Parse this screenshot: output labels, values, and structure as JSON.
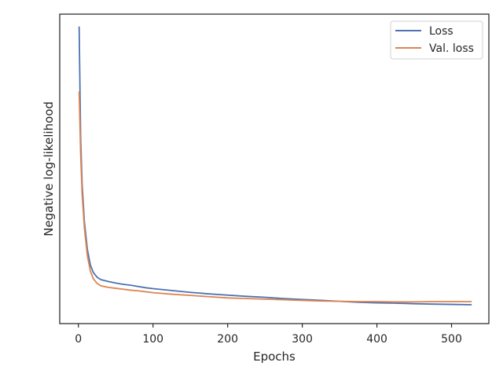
{
  "chart_data": {
    "type": "line",
    "title": "",
    "xlabel": "Epochs",
    "ylabel": "Negative log-likelihood",
    "xlim": [
      -25,
      550
    ],
    "ylim": [
      0.0,
      1.0
    ],
    "y_ticks_shown": false,
    "x_ticks": [
      0,
      100,
      200,
      300,
      400,
      500
    ],
    "x_tick_labels": [
      "0",
      "100",
      "200",
      "300",
      "400",
      "500"
    ],
    "grid": false,
    "legend_position": "top-right",
    "series": [
      {
        "name": "Loss",
        "color": "#4c72b0",
        "points": [
          [
            1,
            0.96
          ],
          [
            3,
            0.6
          ],
          [
            5,
            0.45
          ],
          [
            8,
            0.33
          ],
          [
            12,
            0.24
          ],
          [
            16,
            0.19
          ],
          [
            20,
            0.165
          ],
          [
            25,
            0.15
          ],
          [
            30,
            0.142
          ],
          [
            40,
            0.136
          ],
          [
            50,
            0.131
          ],
          [
            60,
            0.127
          ],
          [
            70,
            0.124
          ],
          [
            80,
            0.12
          ],
          [
            90,
            0.116
          ],
          [
            100,
            0.113
          ],
          [
            125,
            0.107
          ],
          [
            150,
            0.101
          ],
          [
            175,
            0.096
          ],
          [
            200,
            0.092
          ],
          [
            225,
            0.088
          ],
          [
            250,
            0.085
          ],
          [
            275,
            0.081
          ],
          [
            300,
            0.078
          ],
          [
            325,
            0.075
          ],
          [
            350,
            0.072
          ],
          [
            375,
            0.069
          ],
          [
            400,
            0.067
          ],
          [
            425,
            0.066
          ],
          [
            450,
            0.064
          ],
          [
            475,
            0.063
          ],
          [
            500,
            0.062
          ],
          [
            527,
            0.061
          ]
        ]
      },
      {
        "name": "Val. loss",
        "color": "#dd8452",
        "points": [
          [
            1,
            0.75
          ],
          [
            3,
            0.55
          ],
          [
            5,
            0.42
          ],
          [
            8,
            0.31
          ],
          [
            12,
            0.22
          ],
          [
            16,
            0.17
          ],
          [
            20,
            0.145
          ],
          [
            25,
            0.13
          ],
          [
            30,
            0.122
          ],
          [
            40,
            0.117
          ],
          [
            50,
            0.114
          ],
          [
            60,
            0.111
          ],
          [
            70,
            0.108
          ],
          [
            80,
            0.106
          ],
          [
            90,
            0.103
          ],
          [
            100,
            0.1
          ],
          [
            125,
            0.095
          ],
          [
            150,
            0.091
          ],
          [
            175,
            0.087
          ],
          [
            200,
            0.083
          ],
          [
            225,
            0.081
          ],
          [
            250,
            0.079
          ],
          [
            275,
            0.077
          ],
          [
            300,
            0.075
          ],
          [
            325,
            0.073
          ],
          [
            350,
            0.072
          ],
          [
            375,
            0.071
          ],
          [
            400,
            0.071
          ],
          [
            425,
            0.07
          ],
          [
            450,
            0.07
          ],
          [
            475,
            0.071
          ],
          [
            500,
            0.071
          ],
          [
            527,
            0.071
          ]
        ]
      }
    ]
  }
}
